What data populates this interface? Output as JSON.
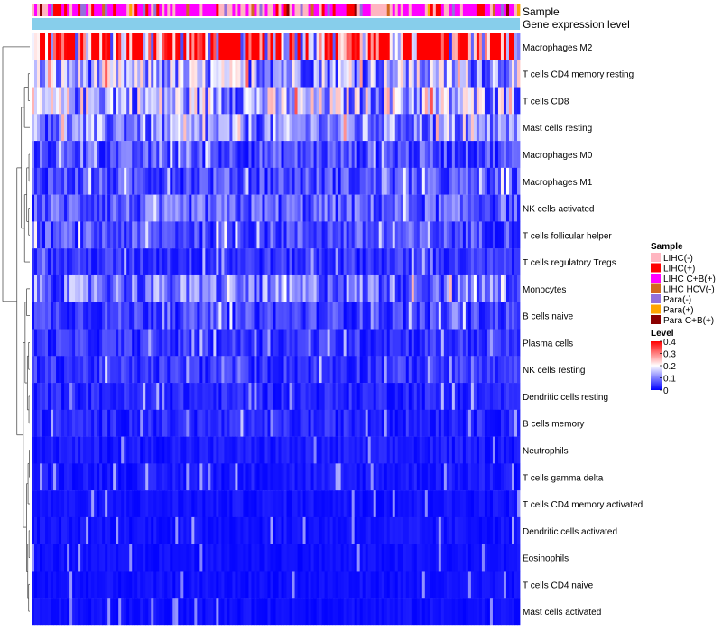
{
  "chart_data": {
    "type": "heatmap",
    "annotation_tracks": [
      "Sample",
      "Gene expression level"
    ],
    "rows": [
      "Macrophages M2",
      "T cells CD4 memory resting",
      "T cells CD8",
      "Mast cells resting",
      "Macrophages M0",
      "Macrophages M1",
      "NK cells activated",
      "T cells follicular helper",
      "T cells regulatory  Tregs",
      "Monocytes",
      "B cells naive",
      "Plasma cells",
      "NK cells resting",
      "Dendritic cells resting",
      "B cells memory",
      "Neutrophils",
      "T cells gamma delta",
      "T cells CD4 memory activated",
      "Dendritic cells activated",
      "Eosinophils",
      "T cells CD4 naive",
      "Mast cells activated"
    ],
    "row_mean_level": [
      0.34,
      0.13,
      0.14,
      0.1,
      0.06,
      0.06,
      0.07,
      0.06,
      0.04,
      0.09,
      0.05,
      0.04,
      0.04,
      0.03,
      0.03,
      0.02,
      0.02,
      0.015,
      0.015,
      0.012,
      0.012,
      0.012
    ],
    "sample_legend": {
      "title": "Sample",
      "items": [
        {
          "label": "LIHC(-)",
          "color": "#FFB6C1"
        },
        {
          "label": "LIHC(+)",
          "color": "#FF0000"
        },
        {
          "label": "LIHC C+B(+)",
          "color": "#FF00FF"
        },
        {
          "label": "LIHC HCV(-)",
          "color": "#D2691E"
        },
        {
          "label": "Para(-)",
          "color": "#9370DB"
        },
        {
          "label": "Para(+)",
          "color": "#FFA500"
        },
        {
          "label": "Para C+B(+)",
          "color": "#8B0000"
        }
      ]
    },
    "level_legend": {
      "title": "Level",
      "ticks": [
        "0.4",
        "0.3",
        "0.2",
        "0.1",
        "0"
      ],
      "tick_values": [
        0.4,
        0.3,
        0.2,
        0.1,
        0
      ],
      "range": [
        0,
        0.4
      ]
    },
    "colorscale": [
      "#0000FF",
      "#FFFFFF",
      "#FF0000"
    ],
    "expression_track_color": "#87CEEB"
  }
}
